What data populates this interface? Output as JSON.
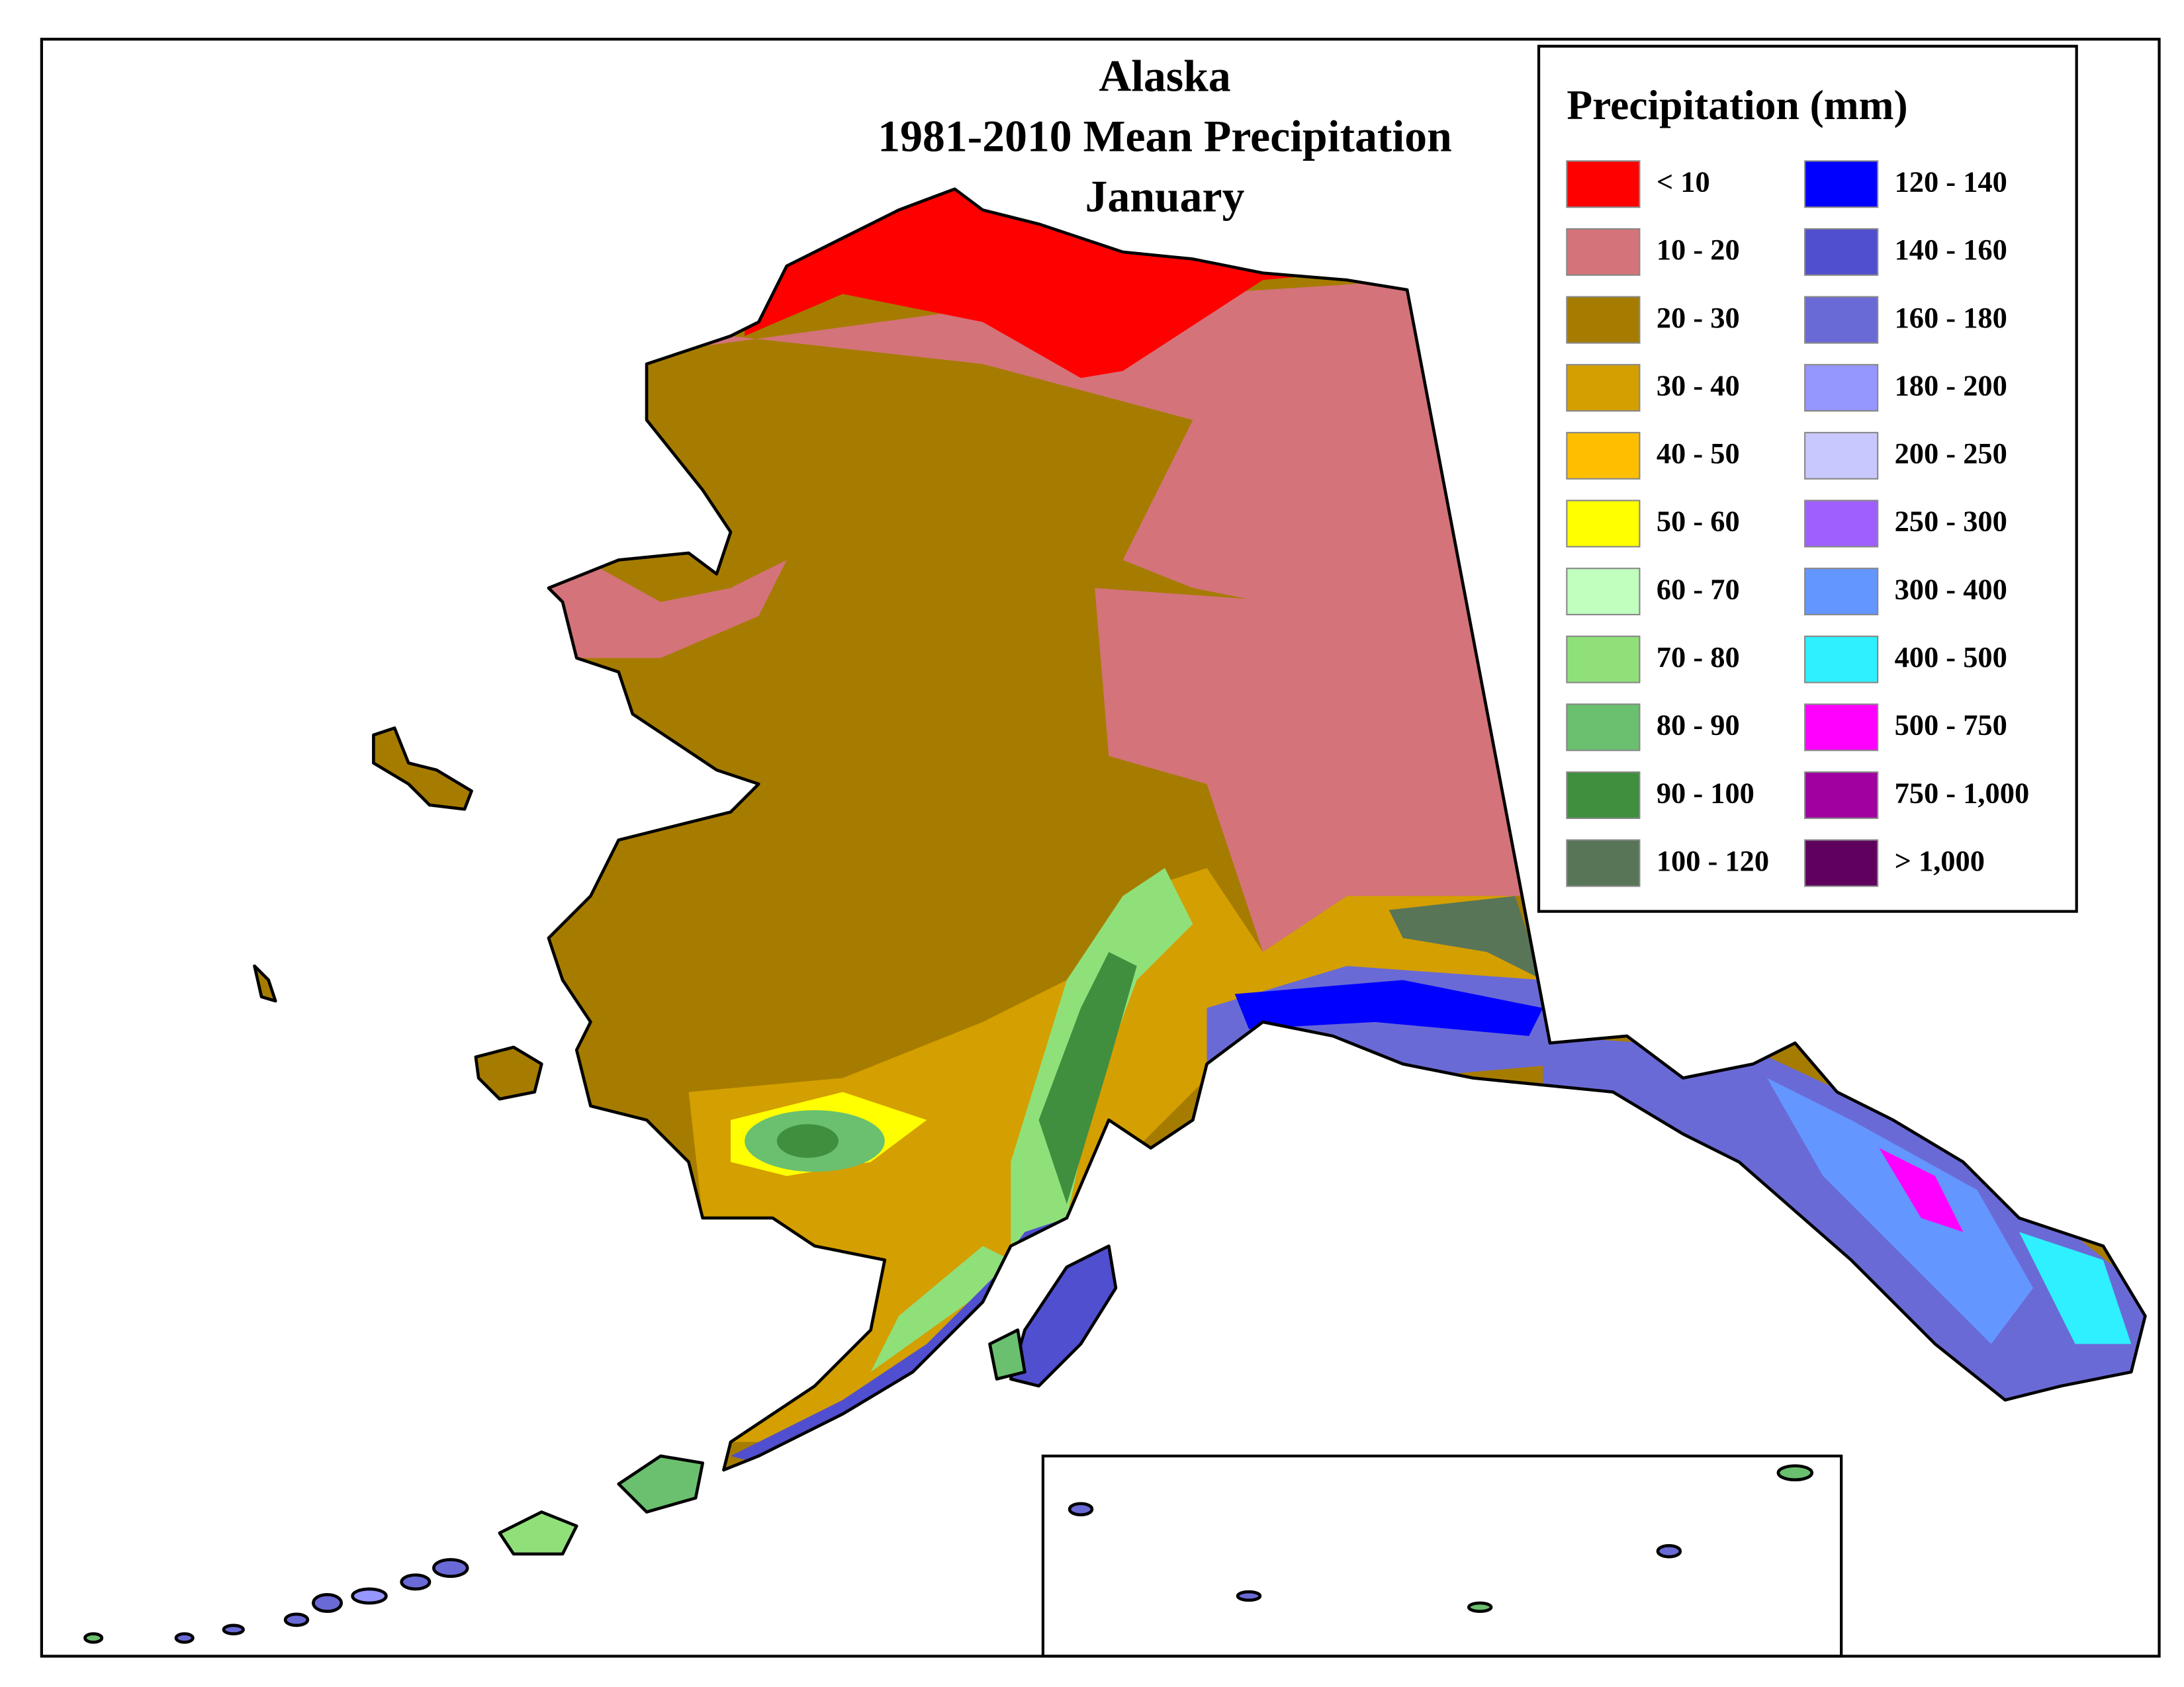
{
  "title": [
    "Alaska",
    "1981-2010 Mean Precipitation",
    "January"
  ],
  "legend": {
    "title": "Precipitation (mm)",
    "items": [
      {
        "label": "< 10",
        "color": "#ff0000"
      },
      {
        "label": "10 - 20",
        "color": "#d4737a"
      },
      {
        "label": "20 - 30",
        "color": "#a67c00"
      },
      {
        "label": "30 - 40",
        "color": "#d49f00"
      },
      {
        "label": "40 - 50",
        "color": "#ffbf00"
      },
      {
        "label": "50 - 60",
        "color": "#ffff00"
      },
      {
        "label": "60 - 70",
        "color": "#c0ffbe"
      },
      {
        "label": "70 - 80",
        "color": "#90e07a"
      },
      {
        "label": "80 - 90",
        "color": "#6ac06e"
      },
      {
        "label": "90 - 100",
        "color": "#3f8f3f"
      },
      {
        "label": "100 - 120",
        "color": "#587558"
      },
      {
        "label": "120 - 140",
        "color": "#0000ff"
      },
      {
        "label": "140 - 160",
        "color": "#4f4fcf"
      },
      {
        "label": "160 - 180",
        "color": "#6a6ad6"
      },
      {
        "label": "180 - 200",
        "color": "#9696ff"
      },
      {
        "label": "200 - 250",
        "color": "#c8c8ff"
      },
      {
        "label": "250 - 300",
        "color": "#9f5fff"
      },
      {
        "label": "300 - 400",
        "color": "#6496ff"
      },
      {
        "label": "400 - 500",
        "color": "#2ff0ff"
      },
      {
        "label": "500 - 750",
        "color": "#ff00ff"
      },
      {
        "label": "750 - 1,000",
        "color": "#a000a0"
      },
      {
        "label": "> 1,000",
        "color": "#5f005f"
      }
    ]
  }
}
